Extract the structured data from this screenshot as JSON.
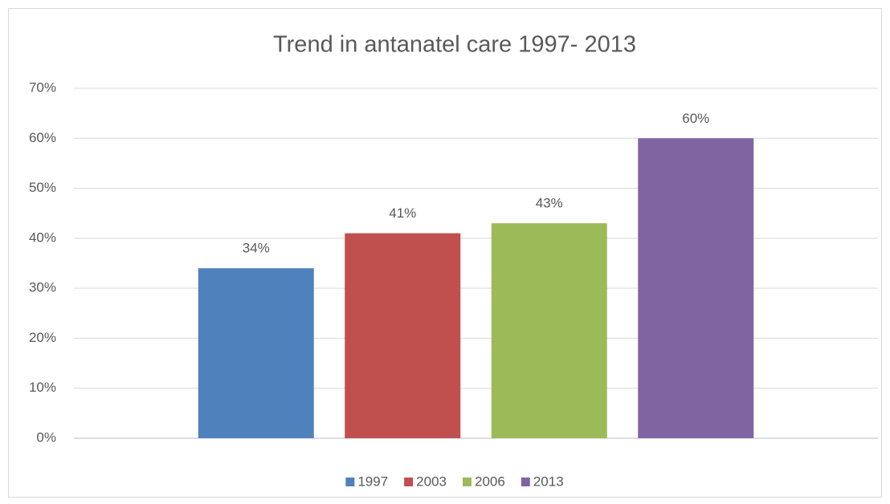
{
  "chart_data": {
    "type": "bar",
    "title": "Trend in antanatel care 1997- 2013",
    "categories": [
      null
    ],
    "series": [
      {
        "name": "1997",
        "color": "#4f81bd",
        "values": [
          34
        ],
        "value_labels": [
          "34%"
        ]
      },
      {
        "name": "2003",
        "color": "#c0504d",
        "values": [
          41
        ],
        "value_labels": [
          "41%"
        ]
      },
      {
        "name": "2006",
        "color": "#9bbb59",
        "values": [
          43
        ],
        "value_labels": [
          "43%"
        ]
      },
      {
        "name": "2013",
        "color": "#8064a2",
        "values": [
          60
        ],
        "value_labels": [
          "60%"
        ]
      }
    ],
    "ylim": [
      0,
      70
    ],
    "yticks": [
      {
        "value": 0,
        "label": "0%"
      },
      {
        "value": 10,
        "label": "10%"
      },
      {
        "value": 20,
        "label": "20%"
      },
      {
        "value": 30,
        "label": "30%"
      },
      {
        "value": 40,
        "label": "40%"
      },
      {
        "value": 50,
        "label": "50%"
      },
      {
        "value": 60,
        "label": "60%"
      },
      {
        "value": 70,
        "label": "70%"
      }
    ],
    "grid": true,
    "legend": "bottom"
  }
}
